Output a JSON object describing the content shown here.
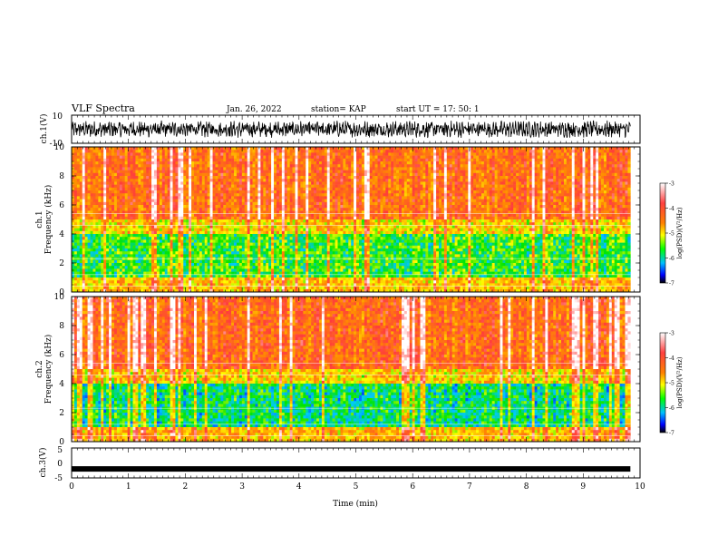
{
  "header": {
    "title": "VLF Spectra",
    "date": "Jan. 26, 2022",
    "station": "station= KAP",
    "start": "start  UT =   17: 50: 1"
  },
  "chart_data": [
    {
      "type": "line",
      "id": "ch1-waveform",
      "ylabel": "ch.1(V)",
      "ylim": [
        -10,
        10
      ],
      "yticks": [
        "10",
        "-10"
      ],
      "xlim": [
        0,
        10
      ],
      "series": [
        {
          "x_range": [
            0,
            9.83
          ],
          "values_description_range": [
            -6,
            6
          ]
        }
      ]
    },
    {
      "type": "heatmap",
      "id": "ch1-spectrogram",
      "ylabel_line1": "ch.1",
      "ylabel_line2": "Frequency  (kHz)",
      "ylim": [
        0,
        10
      ],
      "yticks": [
        "0",
        "2",
        "4",
        "6",
        "8",
        "10"
      ],
      "xlim": [
        0,
        10
      ],
      "colorbar": {
        "label": "log(PSD)(V²/Hz)",
        "range": [
          -7,
          -3
        ],
        "ticks": [
          "-3",
          "-4",
          "-5",
          "-6",
          "-7"
        ]
      }
    },
    {
      "type": "heatmap",
      "id": "ch2-spectrogram",
      "ylabel_line1": "ch.2",
      "ylabel_line2": "Frequency  (kHz)",
      "ylim": [
        0,
        10
      ],
      "yticks": [
        "0",
        "2",
        "4",
        "6",
        "8",
        "10"
      ],
      "xlim": [
        0,
        10
      ],
      "colorbar": {
        "label": "log(PSD)(V²/Hz)",
        "range": [
          -7,
          -3
        ],
        "ticks": [
          "-3",
          "-4",
          "-5",
          "-6",
          "-7"
        ]
      }
    },
    {
      "type": "line",
      "id": "ch3-waveform",
      "ylabel": "ch.3(V)",
      "ylim": [
        -5,
        5
      ],
      "yticks": [
        "5",
        "0",
        "-5"
      ],
      "xlim": [
        0,
        10
      ],
      "xlabel": "Time  (min)",
      "xticks": [
        "0",
        "1",
        "2",
        "3",
        "4",
        "5",
        "6",
        "7",
        "8",
        "9",
        "10"
      ],
      "series": [
        {
          "x_range": [
            0,
            9.83
          ],
          "y_level": -2
        }
      ]
    }
  ],
  "colors": {
    "axis": "#000000",
    "colormap": [
      "#ffffff",
      "#ff0000",
      "#ffff00",
      "#00ff00",
      "#00ffff",
      "#0000ff",
      "#000000"
    ]
  }
}
